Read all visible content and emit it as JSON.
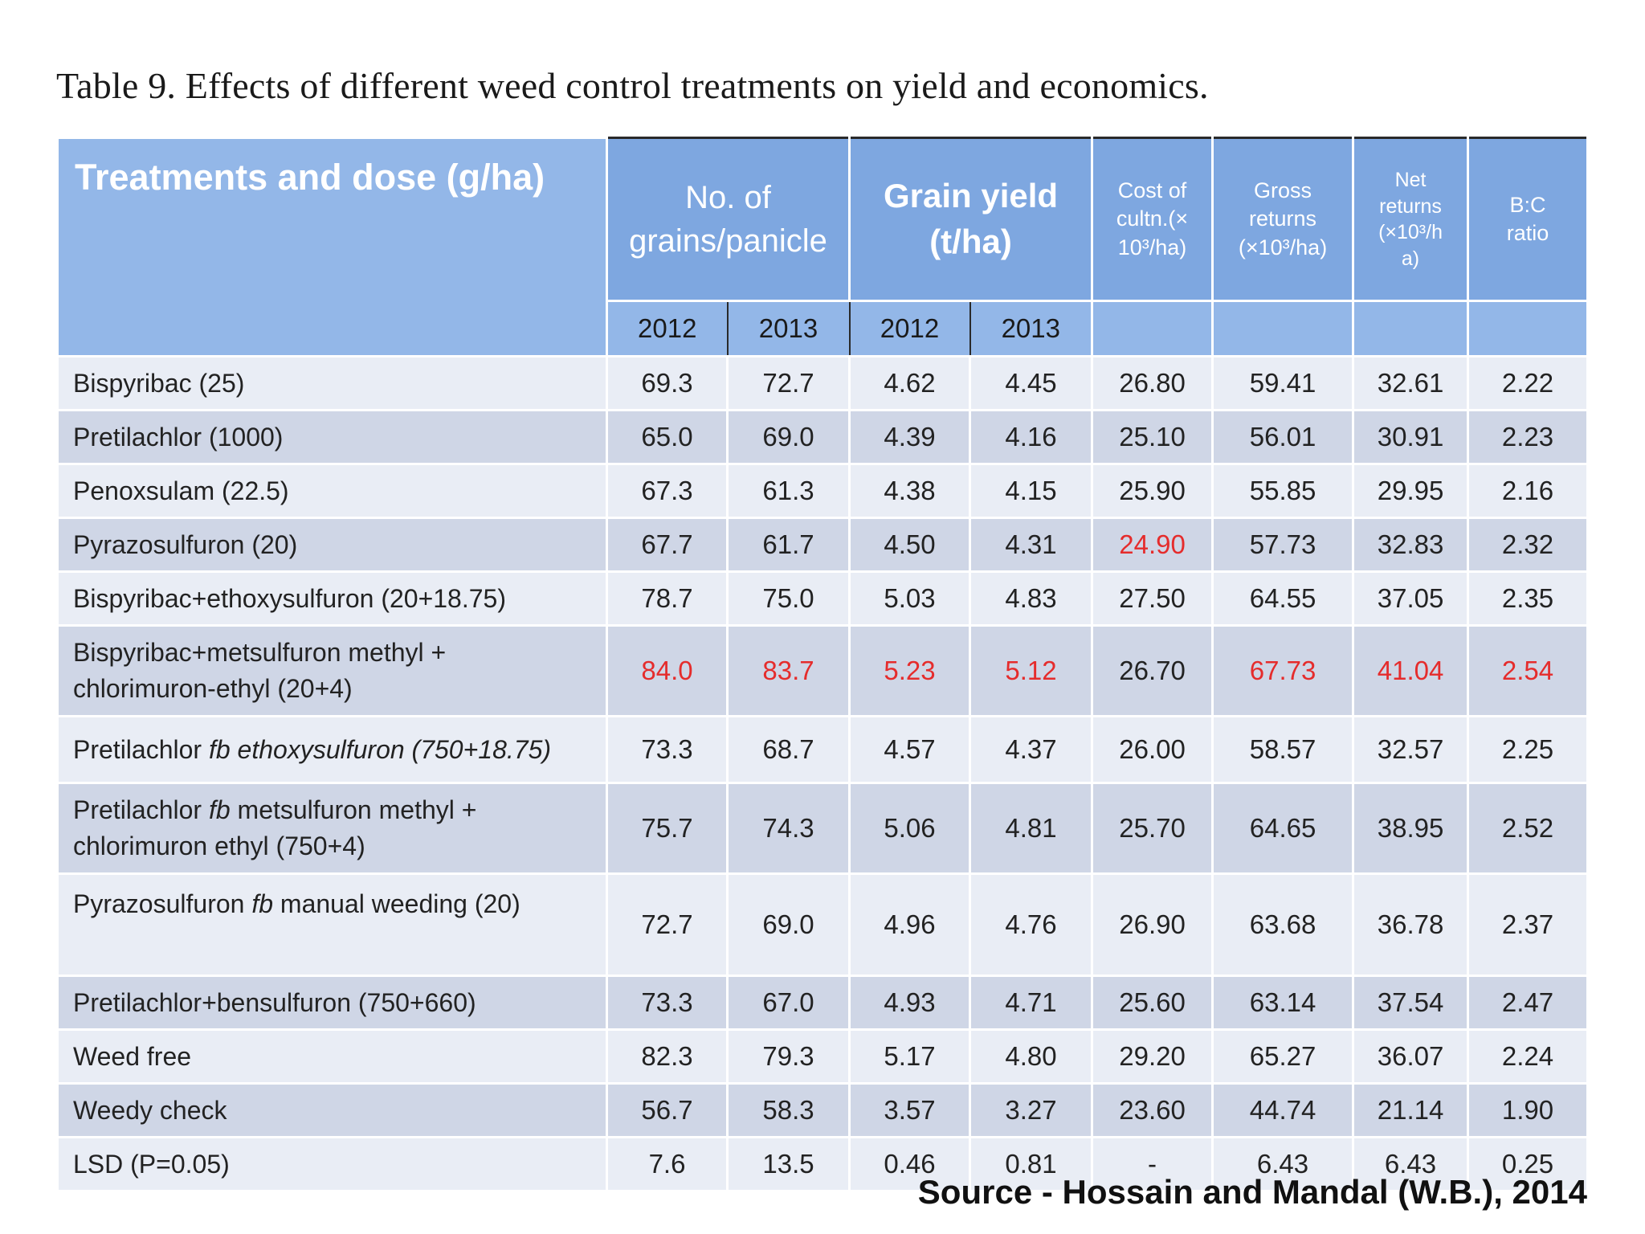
{
  "caption": "Table 9. Effects of different weed control treatments on yield and economics.",
  "headers": {
    "treatments": "Treatments and dose  (g/ha)",
    "grains_line1": "No. of",
    "grains_line2": "grains/panicle",
    "yield_line1": "Grain yield",
    "yield_line2": "(t/ha)",
    "cost_line1": "Cost of",
    "cost_line2": "cultn.(×",
    "cost_line3": "10³/ha)",
    "gross_line1": "Gross",
    "gross_line2": "returns",
    "gross_line3": "(×10³/ha)",
    "net_line1": "Net",
    "net_line2": "returns",
    "net_line3": "(×10³/h",
    "net_line4": "a)",
    "bc_line1": "B:C",
    "bc_line2": "ratio",
    "year_a": "2012",
    "year_b": "2013",
    "year_c": "2012",
    "year_d": "2013"
  },
  "rows": [
    {
      "name1": "Bispyribac (25)",
      "g12": "69.3",
      "g13": "72.7",
      "y12": "4.62",
      "y13": "4.45",
      "cost": "26.80",
      "gross": "59.41",
      "net": "32.61",
      "bc": "2.22"
    },
    {
      "name1": "Pretilachlor (1000)",
      "g12": "65.0",
      "g13": "69.0",
      "y12": "4.39",
      "y13": "4.16",
      "cost": "25.10",
      "gross": "56.01",
      "net": "30.91",
      "bc": "2.23"
    },
    {
      "name1": "Penoxsulam (22.5)",
      "g12": "67.3",
      "g13": "61.3",
      "y12": "4.38",
      "y13": "4.15",
      "cost": "25.90",
      "gross": "55.85",
      "net": "29.95",
      "bc": "2.16"
    },
    {
      "name1": "Pyrazosulfuron (20)",
      "g12": "67.7",
      "g13": "61.7",
      "y12": "4.50",
      "y13": "4.31",
      "cost": "24.90",
      "gross": "57.73",
      "net": "32.83",
      "bc": "2.32"
    },
    {
      "name1": "Bispyribac+ethoxysulfuron (20+18.75)",
      "g12": "78.7",
      "g13": "75.0",
      "y12": "5.03",
      "y13": "4.83",
      "cost": "27.50",
      "gross": "64.55",
      "net": "37.05",
      "bc": "2.35"
    },
    {
      "name1": "Bispyribac+metsulfuron methyl +",
      "name2": "chlorimuron-ethyl (20+4)",
      "g12": "84.0",
      "g13": "83.7",
      "y12": "5.23",
      "y13": "5.12",
      "cost": "26.70",
      "gross": "67.73",
      "net": "41.04",
      "bc": "2.54"
    },
    {
      "name1": "Pretilachlor",
      "fb": "fb",
      "name_rest": "ethoxysulfuron (750+18.75)",
      "g12": "73.3",
      "g13": "68.7",
      "y12": "4.57",
      "y13": "4.37",
      "cost": "26.00",
      "gross": "58.57",
      "net": "32.57",
      "bc": "2.25"
    },
    {
      "name1": "Pretilachlor",
      "fb": "fb",
      "name_rest": "metsulfuron methyl +",
      "name2": "chlorimuron ethyl (750+4)",
      "g12": "75.7",
      "g13": "74.3",
      "y12": "5.06",
      "y13": "4.81",
      "cost": "25.70",
      "gross": "64.65",
      "net": "38.95",
      "bc": "2.52"
    },
    {
      "name1": "Pyrazosulfuron",
      "fb": "fb",
      "name_rest": "manual weeding (20)",
      "g12": "72.7",
      "g13": "69.0",
      "y12": "4.96",
      "y13": "4.76",
      "cost": "26.90",
      "gross": "63.68",
      "net": "36.78",
      "bc": "2.37"
    },
    {
      "name1": "Pretilachlor+bensulfuron (750+660)",
      "g12": "73.3",
      "g13": "67.0",
      "y12": "4.93",
      "y13": "4.71",
      "cost": "25.60",
      "gross": "63.14",
      "net": "37.54",
      "bc": "2.47"
    },
    {
      "name1": "Weed free",
      "g12": "82.3",
      "g13": "79.3",
      "y12": "5.17",
      "y13": "4.80",
      "cost": "29.20",
      "gross": "65.27",
      "net": "36.07",
      "bc": "2.24"
    },
    {
      "name1": "Weedy check",
      "g12": "56.7",
      "g13": "58.3",
      "y12": "3.57",
      "y13": "3.27",
      "cost": "23.60",
      "gross": "44.74",
      "net": "21.14",
      "bc": "1.90"
    },
    {
      "name1": "LSD (P=0.05)",
      "g12": "7.6",
      "g13": "13.5",
      "y12": "0.46",
      "y13": "0.81",
      "cost": "-",
      "gross": "6.43",
      "net": "6.43",
      "bc": "0.25"
    }
  ],
  "source": "Source - Hossain and Mandal (W.B.), 2014",
  "colors": {
    "header_blue": "#7ea7e0",
    "row_light": "#e9edf5",
    "row_dark": "#cfd6e6",
    "highlight_red": "#e52c2c"
  }
}
